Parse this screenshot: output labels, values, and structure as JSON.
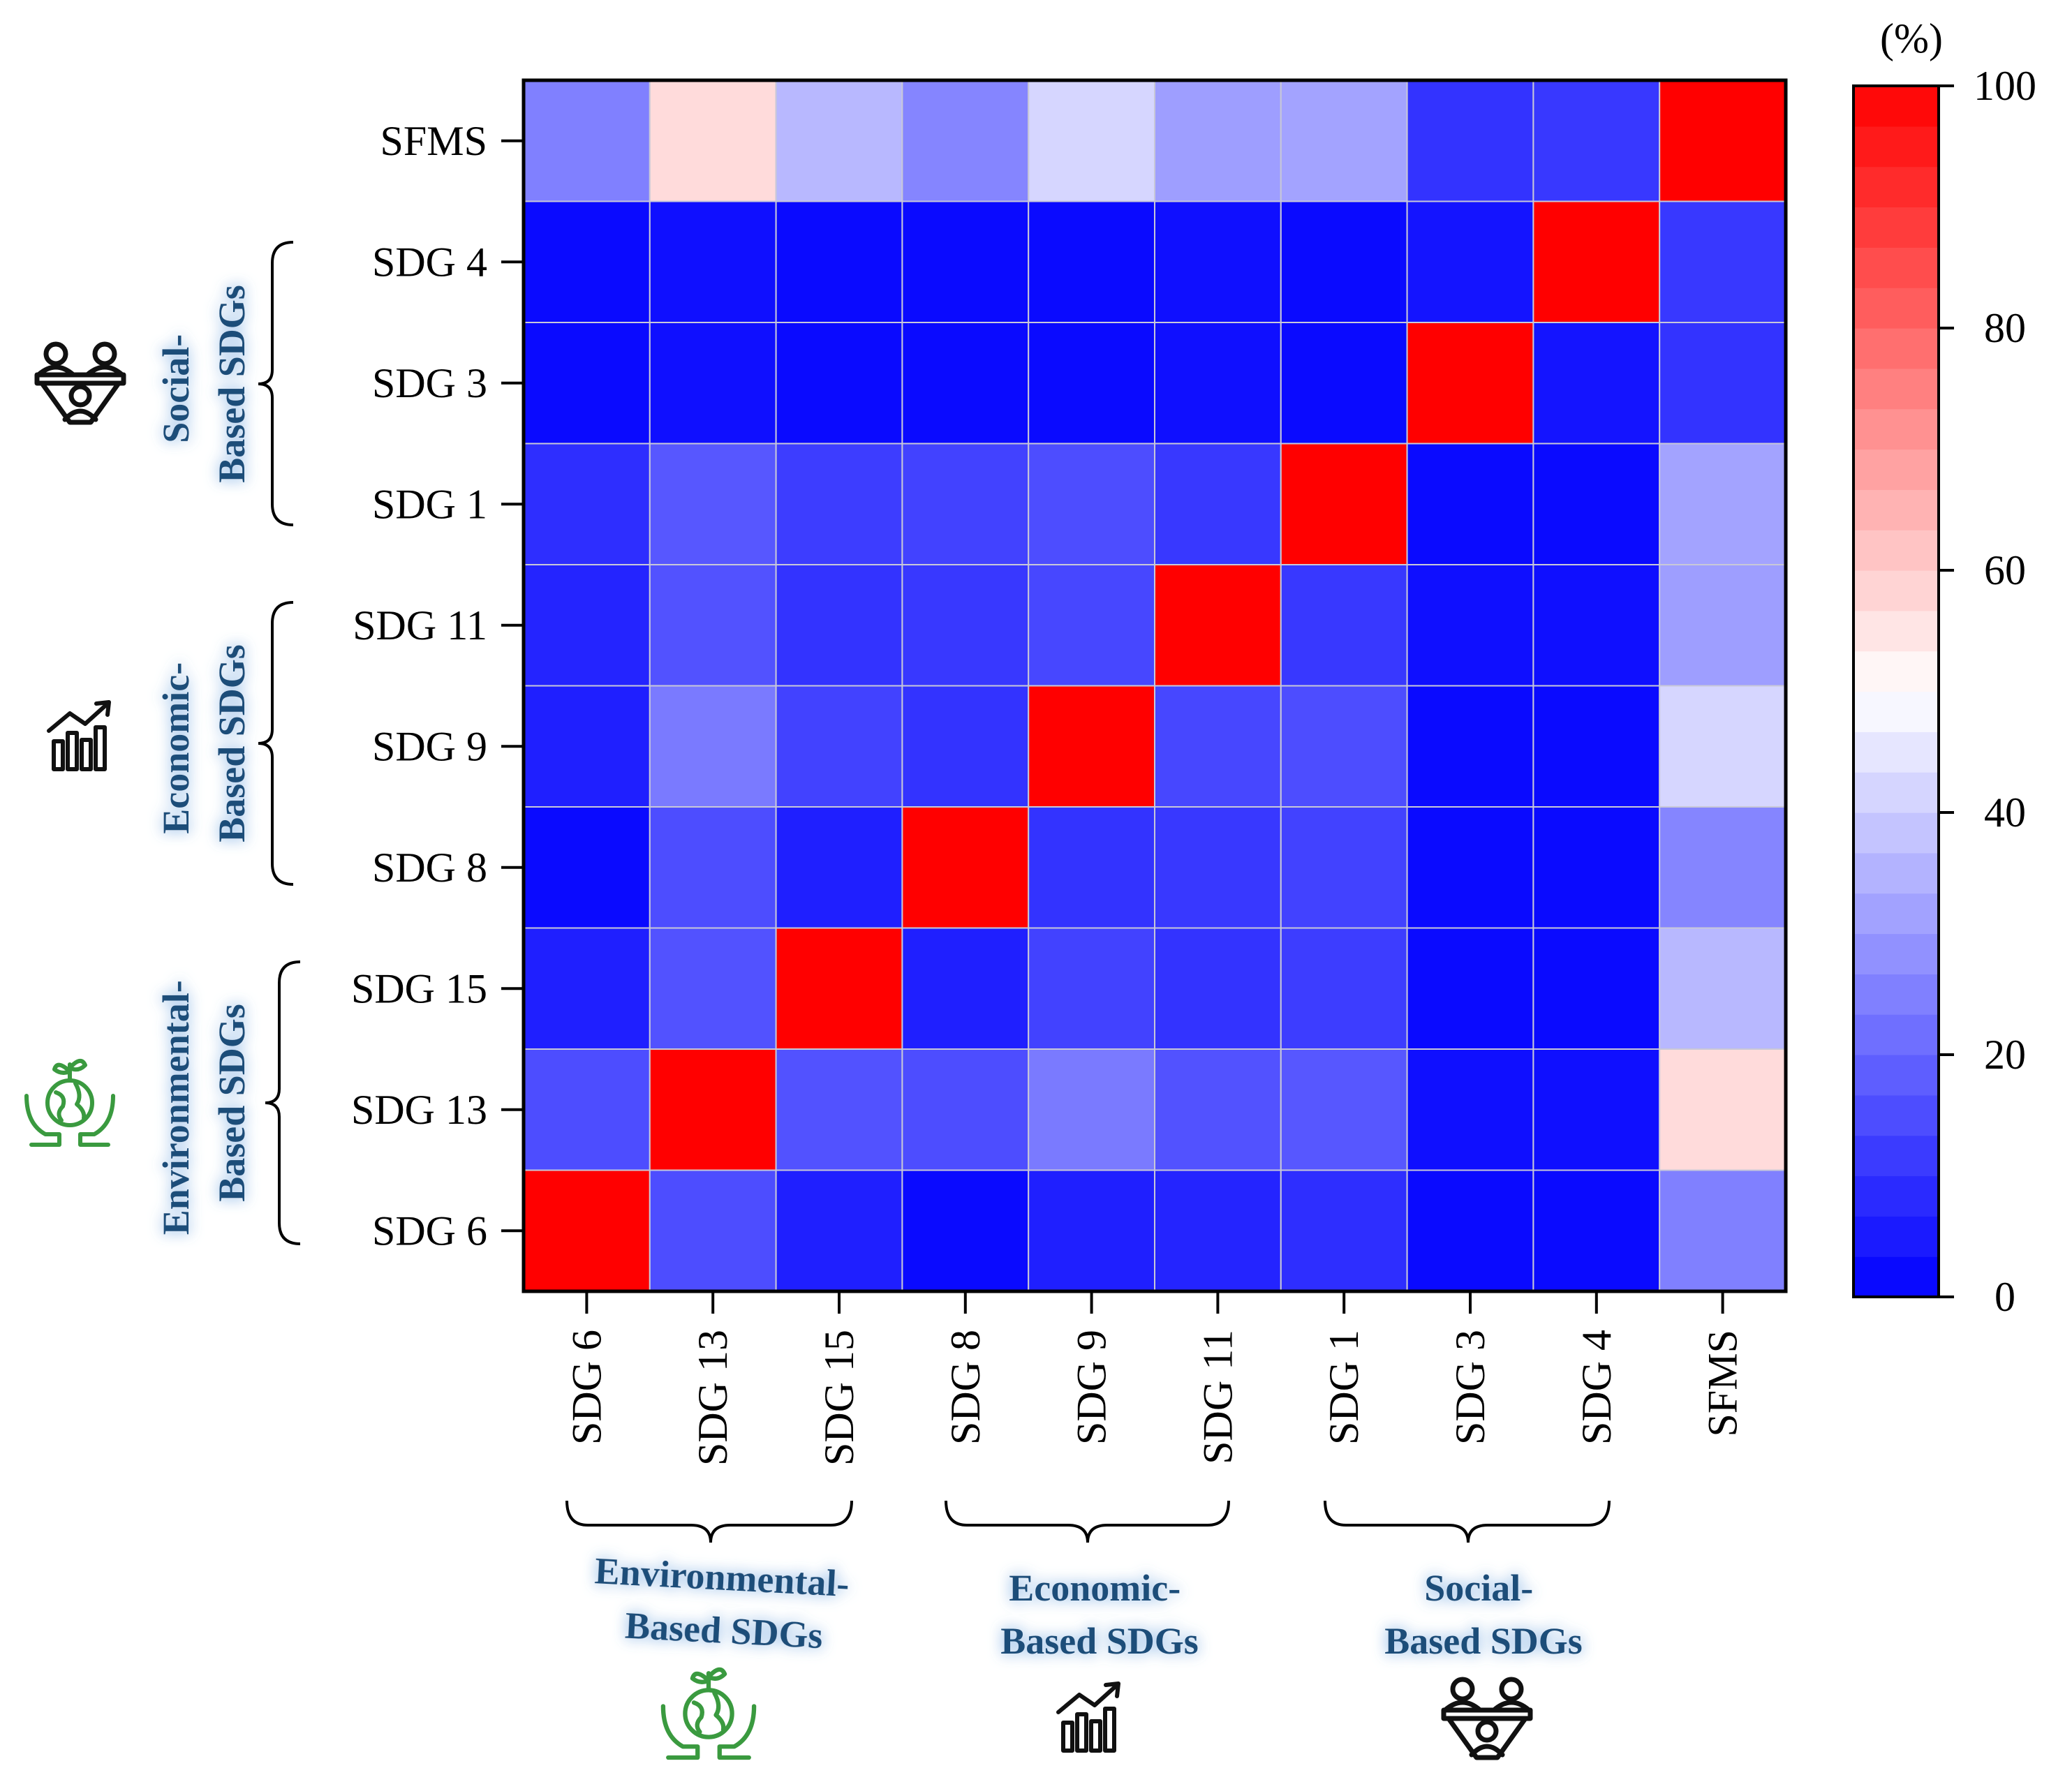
{
  "chart_data": {
    "type": "heatmap",
    "x_categories": [
      "SDG 6",
      "SDG 13",
      "SDG 15",
      "SDG 8",
      "SDG 9",
      "SDG 11",
      "SDG 1",
      "SDG 3",
      "SDG 4",
      "SFMS"
    ],
    "y_categories": [
      "SFMS",
      "SDG 4",
      "SDG 3",
      "SDG 1",
      "SDG 11",
      "SDG 9",
      "SDG 8",
      "SDG 15",
      "SDG 13",
      "SDG 6"
    ],
    "values": [
      [
        25,
        57,
        36,
        26,
        42,
        31,
        32,
        10,
        11,
        100
      ],
      [
        2,
        3,
        2,
        2,
        2,
        3,
        2,
        4,
        100,
        11
      ],
      [
        2,
        3,
        2,
        2,
        2,
        3,
        2,
        100,
        4,
        10
      ],
      [
        9,
        17,
        12,
        13,
        15,
        11,
        100,
        2,
        2,
        32
      ],
      [
        7,
        16,
        10,
        11,
        14,
        100,
        11,
        3,
        3,
        31
      ],
      [
        6,
        24,
        13,
        10,
        100,
        14,
        15,
        2,
        2,
        42
      ],
      [
        2,
        15,
        6,
        100,
        10,
        11,
        13,
        2,
        2,
        26
      ],
      [
        6,
        16,
        100,
        6,
        13,
        10,
        12,
        2,
        2,
        36
      ],
      [
        15,
        100,
        16,
        15,
        24,
        16,
        17,
        3,
        3,
        57
      ],
      [
        100,
        15,
        6,
        2,
        6,
        7,
        9,
        2,
        2,
        25
      ]
    ],
    "colorbar": {
      "unit_label": "(%)",
      "range": [
        0,
        100
      ],
      "ticks": [
        "0",
        "20",
        "40",
        "60",
        "80",
        "100"
      ],
      "low_color": "#0000ff",
      "mid_color": "#ffffff",
      "high_color": "#ff0000"
    },
    "groups": [
      {
        "name": "Environmental-Based SDGs",
        "line1": "Environmental-",
        "line2": "Based SDGs",
        "icon": "earth-in-hands-icon",
        "members": [
          "SDG 6",
          "SDG 13",
          "SDG 15"
        ]
      },
      {
        "name": "Economic-Based SDGs",
        "line1": "Economic-",
        "line2": "Based SDGs",
        "icon": "growth-chart-icon",
        "members": [
          "SDG 8",
          "SDG 9",
          "SDG 11"
        ]
      },
      {
        "name": "Social-Based SDGs",
        "line1": "Social-",
        "line2": "Based SDGs",
        "icon": "people-support-icon",
        "members": [
          "SDG 1",
          "SDG 3",
          "SDG 4"
        ]
      }
    ]
  },
  "colors": {
    "group_text": "#1f4e79",
    "icon_green": "#3a9a3f",
    "icon_black": "#111111",
    "grid_line": "#c8c8d8"
  }
}
